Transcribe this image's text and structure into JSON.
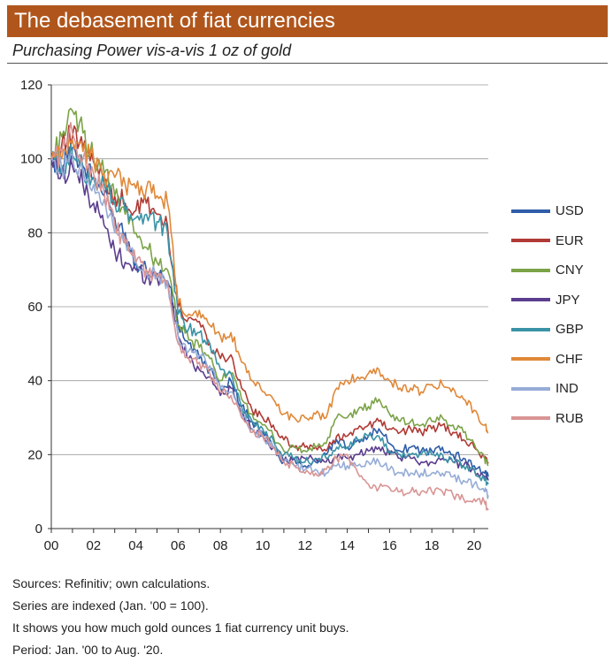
{
  "header": {
    "title": "The debasement of fiat currencies",
    "subtitle": "Purchasing Power vis-a-vis 1 oz of gold"
  },
  "notes": [
    "Sources: Refinitiv; own calculations.",
    "Series are indexed (Jan. '00 = 100).",
    "It shows you how much gold ounces 1 fiat currency unit buys.",
    "Period: Jan. '00 to Aug. '20."
  ],
  "chart_data": {
    "type": "line",
    "title": "Purchasing Power vis-a-vis 1 oz of gold",
    "xlabel": "",
    "ylabel": "",
    "xlim": [
      2000,
      2020.67
    ],
    "ylim": [
      0,
      120
    ],
    "yticks": [
      0,
      20,
      40,
      60,
      80,
      100,
      120
    ],
    "xticks": [
      2000,
      2002,
      2004,
      2006,
      2008,
      2010,
      2012,
      2014,
      2016,
      2018,
      2020
    ],
    "xtick_labels": [
      "00",
      "02",
      "04",
      "06",
      "08",
      "10",
      "12",
      "14",
      "16",
      "18",
      "20"
    ],
    "grid": "horizontal",
    "legend": "right",
    "x": [
      2000.0,
      2000.5,
      2001.0,
      2001.5,
      2002.0,
      2002.5,
      2003.0,
      2003.5,
      2004.0,
      2004.5,
      2005.0,
      2005.5,
      2006.0,
      2006.5,
      2007.0,
      2007.5,
      2008.0,
      2008.5,
      2009.0,
      2009.5,
      2010.0,
      2010.5,
      2011.0,
      2011.5,
      2012.0,
      2012.5,
      2013.0,
      2013.5,
      2014.0,
      2014.5,
      2015.0,
      2015.5,
      2016.0,
      2016.5,
      2017.0,
      2017.5,
      2018.0,
      2018.5,
      2019.0,
      2019.5,
      2020.0,
      2020.5,
      2020.67
    ],
    "series": [
      {
        "name": "USD",
        "color": "#2f5da8",
        "values": [
          100,
          98,
          103,
          98,
          95,
          90,
          84,
          80,
          72,
          70,
          69,
          67,
          55,
          50,
          46,
          43,
          38,
          40,
          33,
          29,
          26,
          22,
          18,
          19,
          17,
          18,
          20,
          24,
          22,
          24,
          25,
          27,
          23,
          21,
          22,
          21,
          21,
          22,
          20,
          19,
          17,
          15,
          14
        ]
      },
      {
        "name": "EUR",
        "color": "#b03a35",
        "values": [
          100,
          104,
          106,
          103,
          99,
          94,
          90,
          88,
          86,
          88,
          85,
          82,
          60,
          57,
          56,
          50,
          46,
          47,
          38,
          32,
          30,
          28,
          24,
          22,
          22,
          22,
          21,
          25,
          25,
          27,
          28,
          29,
          27,
          26,
          27,
          26,
          27,
          28,
          26,
          24,
          22,
          19,
          18
        ]
      },
      {
        "name": "CNY",
        "color": "#7ba348",
        "values": [
          100,
          106,
          113,
          107,
          100,
          96,
          90,
          85,
          80,
          76,
          72,
          70,
          55,
          51,
          49,
          46,
          40,
          42,
          35,
          31,
          28,
          25,
          21,
          22,
          21,
          22,
          23,
          30,
          30,
          32,
          33,
          35,
          31,
          29,
          29,
          28,
          29,
          30,
          28,
          26,
          23,
          19,
          17
        ]
      },
      {
        "name": "JPY",
        "color": "#5b3e8e",
        "values": [
          100,
          96,
          98,
          93,
          88,
          82,
          75,
          72,
          70,
          68,
          68,
          67,
          52,
          46,
          43,
          41,
          36,
          38,
          31,
          27,
          25,
          22,
          18,
          19,
          19,
          19,
          18,
          19,
          19,
          20,
          21,
          22,
          20,
          19,
          19,
          18,
          18,
          19,
          18,
          17,
          16,
          14,
          13
        ]
      },
      {
        "name": "GBP",
        "color": "#3a93a6",
        "values": [
          100,
          98,
          101,
          97,
          95,
          93,
          88,
          86,
          84,
          85,
          83,
          80,
          58,
          54,
          53,
          50,
          43,
          42,
          33,
          29,
          27,
          24,
          20,
          19,
          18,
          19,
          19,
          22,
          22,
          24,
          25,
          25,
          21,
          20,
          20,
          20,
          20,
          20,
          18,
          17,
          16,
          13,
          12
        ]
      },
      {
        "name": "CHF",
        "color": "#e08838",
        "values": [
          100,
          100,
          105,
          102,
          100,
          96,
          95,
          93,
          92,
          92,
          90,
          88,
          61,
          58,
          59,
          55,
          52,
          53,
          45,
          40,
          37,
          35,
          31,
          30,
          30,
          31,
          30,
          38,
          40,
          41,
          42,
          43,
          40,
          38,
          38,
          37,
          39,
          39,
          38,
          35,
          32,
          28,
          26
        ]
      },
      {
        "name": "IND",
        "color": "#96acd6",
        "values": [
          100,
          97,
          101,
          96,
          93,
          89,
          80,
          78,
          72,
          70,
          68,
          67,
          52,
          48,
          47,
          44,
          38,
          37,
          31,
          27,
          25,
          22,
          18,
          17,
          16,
          16,
          15,
          17,
          17,
          17,
          18,
          18,
          16,
          15,
          15,
          15,
          15,
          15,
          14,
          13,
          12,
          10,
          9
        ]
      },
      {
        "name": "RUB",
        "color": "#d99494",
        "values": [
          100,
          102,
          107,
          100,
          96,
          91,
          82,
          77,
          72,
          70,
          68,
          66,
          50,
          46,
          45,
          42,
          37,
          36,
          30,
          26,
          25,
          22,
          18,
          17,
          15,
          15,
          16,
          19,
          20,
          15,
          12,
          11,
          11,
          10,
          10,
          10,
          10,
          10,
          9,
          8,
          8,
          7,
          5
        ]
      }
    ]
  }
}
